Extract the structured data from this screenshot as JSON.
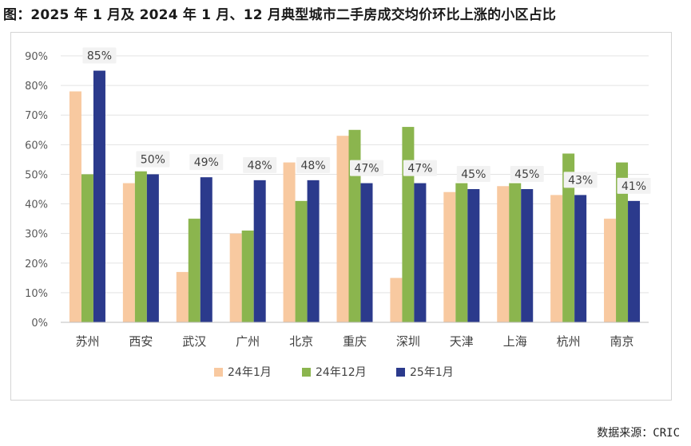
{
  "title": "图：2025 年 1 月及 2024 年 1 月、12 月典型城市二手房成交均价环比上涨的小区占比",
  "source_label": "数据来源：",
  "source_value": "CRIC",
  "chart_data": {
    "type": "bar",
    "categories": [
      "苏州",
      "西安",
      "武汉",
      "广州",
      "北京",
      "重庆",
      "深圳",
      "天津",
      "上海",
      "杭州",
      "南京"
    ],
    "series": [
      {
        "name": "24年1月",
        "color": "#F8C9A0",
        "values": [
          78,
          47,
          17,
          30,
          54,
          63,
          15,
          44,
          46,
          43,
          35
        ]
      },
      {
        "name": "24年12月",
        "color": "#8BB54E",
        "values": [
          50,
          51,
          35,
          31,
          41,
          65,
          66,
          47,
          47,
          57,
          54
        ]
      },
      {
        "name": "25年1月",
        "color": "#2B3A8C",
        "values": [
          85,
          50,
          49,
          48,
          48,
          47,
          47,
          45,
          45,
          43,
          41
        ]
      }
    ],
    "data_labels": [
      "85%",
      "50%",
      "49%",
      "48%",
      "48%",
      "47%",
      "47%",
      "45%",
      "45%",
      "43%",
      "41%"
    ],
    "y_ticks": [
      "0%",
      "10%",
      "20%",
      "30%",
      "40%",
      "50%",
      "60%",
      "70%",
      "80%",
      "90%"
    ],
    "ylim": [
      0,
      90
    ],
    "grid": true,
    "legend_position": "bottom"
  }
}
